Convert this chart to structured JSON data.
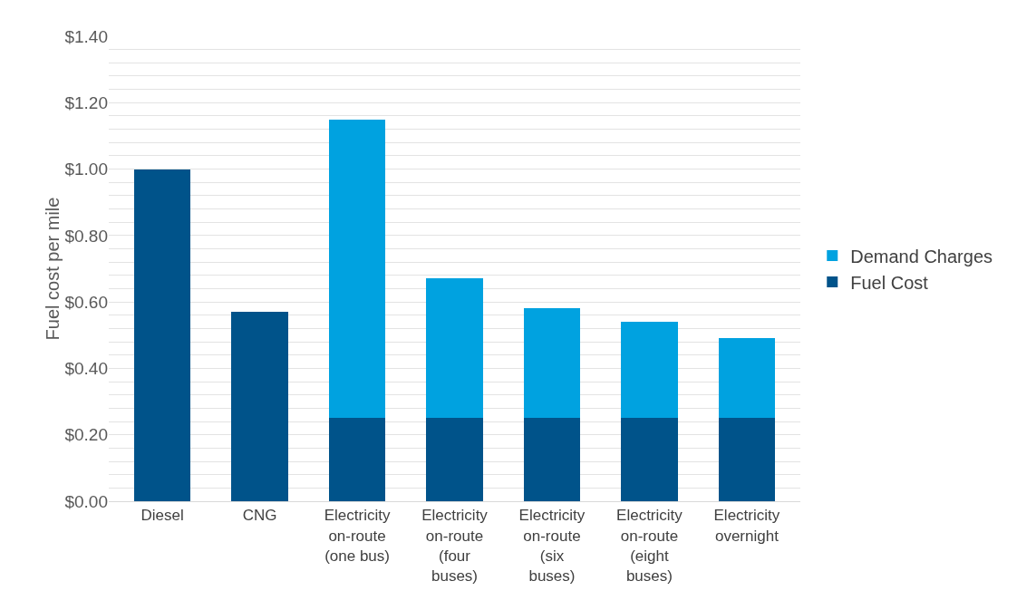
{
  "chart_data": {
    "type": "bar",
    "stacked": true,
    "ylabel": "Fuel cost per mile",
    "categories": [
      "Diesel",
      "CNG",
      "Electricity on-route (one bus)",
      "Electricity on-route (four buses)",
      "Electricity on-route (six buses)",
      "Electricity on-route (eight buses)",
      "Electricity overnight"
    ],
    "series": [
      {
        "name": "Fuel Cost",
        "color": "#00538a",
        "values": [
          1.0,
          0.57,
          0.25,
          0.25,
          0.25,
          0.25,
          0.25
        ]
      },
      {
        "name": "Demand Charges",
        "color": "#00a2e0",
        "values": [
          null,
          null,
          0.9,
          0.42,
          0.33,
          0.29,
          0.24
        ]
      }
    ],
    "ylim": [
      0,
      1.4
    ],
    "yticks": [
      {
        "value": 0,
        "label": "$0.00"
      },
      {
        "value": 0.04,
        "label": null
      },
      {
        "value": 0.08,
        "label": null
      },
      {
        "value": 0.12,
        "label": null
      },
      {
        "value": 0.16,
        "label": null
      },
      {
        "value": 0.2,
        "label": "$0.20"
      },
      {
        "value": 0.24,
        "label": null
      },
      {
        "value": 0.28,
        "label": null
      },
      {
        "value": 0.32,
        "label": null
      },
      {
        "value": 0.36,
        "label": null
      },
      {
        "value": 0.4,
        "label": "$0.40"
      },
      {
        "value": 0.44,
        "label": null
      },
      {
        "value": 0.48,
        "label": null
      },
      {
        "value": 0.52,
        "label": null
      },
      {
        "value": 0.56,
        "label": null
      },
      {
        "value": 0.6,
        "label": "$0.60"
      },
      {
        "value": 0.64,
        "label": null
      },
      {
        "value": 0.68,
        "label": null
      },
      {
        "value": 0.72,
        "label": null
      },
      {
        "value": 0.76,
        "label": null
      },
      {
        "value": 0.8,
        "label": "$0.80"
      },
      {
        "value": 0.84,
        "label": null
      },
      {
        "value": 0.88,
        "label": null
      },
      {
        "value": 0.92,
        "label": null
      },
      {
        "value": 0.96,
        "label": null
      },
      {
        "value": 1.0,
        "label": "$1.00"
      },
      {
        "value": 1.04,
        "label": null
      },
      {
        "value": 1.08,
        "label": null
      },
      {
        "value": 1.12,
        "label": null
      },
      {
        "value": 1.16,
        "label": null
      },
      {
        "value": 1.2,
        "label": "$1.20"
      },
      {
        "value": 1.24,
        "label": null
      },
      {
        "value": 1.28,
        "label": null
      },
      {
        "value": 1.32,
        "label": null
      },
      {
        "value": 1.36,
        "label": null
      },
      {
        "value": 1.4,
        "label": "$1.40"
      }
    ],
    "grid": "y",
    "legend": "right"
  }
}
